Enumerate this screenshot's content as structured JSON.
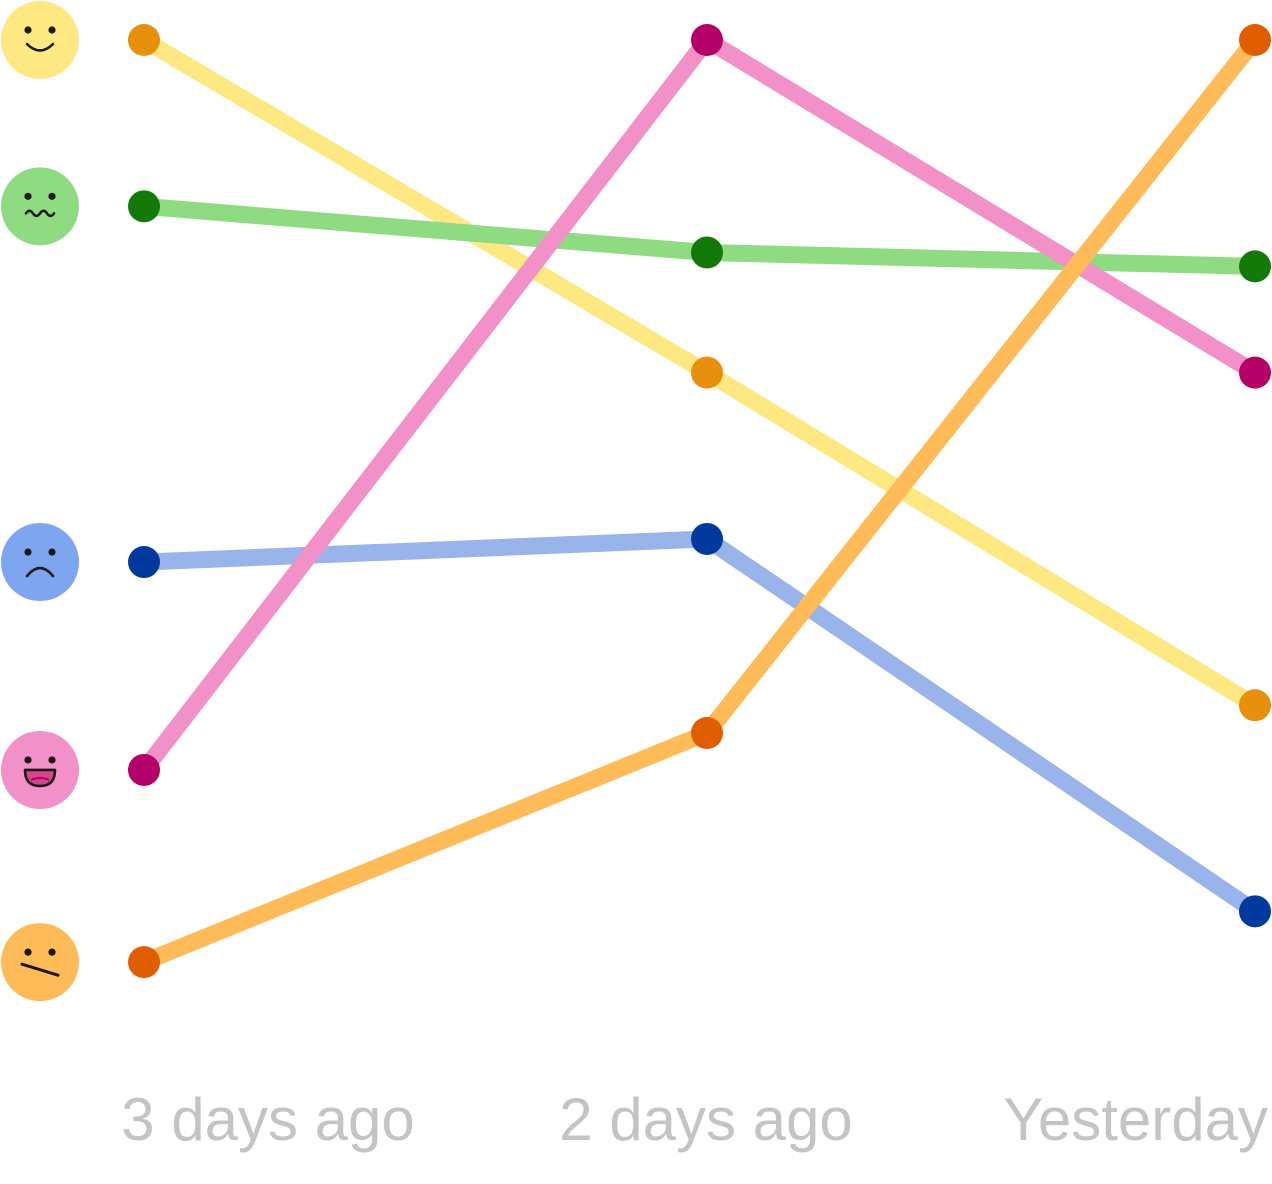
{
  "chart_data": {
    "type": "line",
    "title": "",
    "xlabel": "",
    "ylabel": "",
    "grid": false,
    "legend": "none",
    "categories": [
      "3 days ago",
      "2 days ago",
      "Yesterday"
    ],
    "ylim": [
      0,
      100
    ],
    "series": [
      {
        "icon": "smiling-face-icon",
        "line_color": "#fde882",
        "point_color": "#e88f0c",
        "face_color": "#fde882",
        "values": [
          100,
          64,
          28
        ]
      },
      {
        "icon": "nauseated-face-icon",
        "line_color": "#8fdb82",
        "point_color": "#137a0a",
        "face_color": "#8fdb82",
        "values": [
          82,
          77,
          75.5
        ]
      },
      {
        "icon": "frowning-face-icon",
        "line_color": "#98b4ea",
        "point_color": "#003a9e",
        "face_color": "#7ea6f0",
        "values": [
          43.5,
          46,
          5.7
        ]
      },
      {
        "icon": "grinning-face-icon",
        "line_color": "#f290c8",
        "point_color": "#b5006a",
        "face_color": "#f290c8",
        "values": [
          21,
          100,
          64
        ]
      },
      {
        "icon": "neutral-face-icon",
        "line_color": "#ffbb58",
        "point_color": "#e05e00",
        "face_color": "#ffbb58",
        "values": [
          0.2,
          25,
          100
        ]
      }
    ]
  }
}
